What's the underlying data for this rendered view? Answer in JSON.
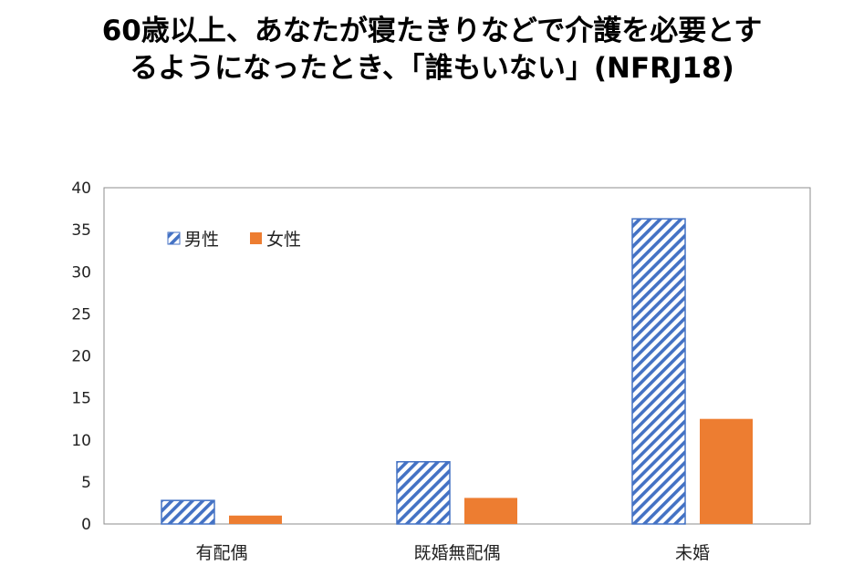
{
  "chart_data": {
    "type": "bar",
    "title_line1": "60歳以上、あなたが寝たきりなどで介護を必要とす",
    "title_line2": "るようになったとき、「誰もいない」(NFRJ18)",
    "categories": [
      "有配偶",
      "既婚無配偶",
      "未婚"
    ],
    "series": [
      {
        "name": "男性",
        "values": [
          2.8,
          7.4,
          36.3
        ],
        "color": "#4472C4",
        "pattern": "diagonal-hatch"
      },
      {
        "name": "女性",
        "values": [
          1.0,
          3.1,
          12.5
        ],
        "color": "#ED7D31",
        "pattern": "solid"
      }
    ],
    "ylim": [
      0,
      40
    ],
    "yticks": [
      0,
      5,
      10,
      15,
      20,
      25,
      30,
      35,
      40
    ],
    "xlabel": "",
    "ylabel": "",
    "grid": false,
    "legend_position": "top-left"
  }
}
